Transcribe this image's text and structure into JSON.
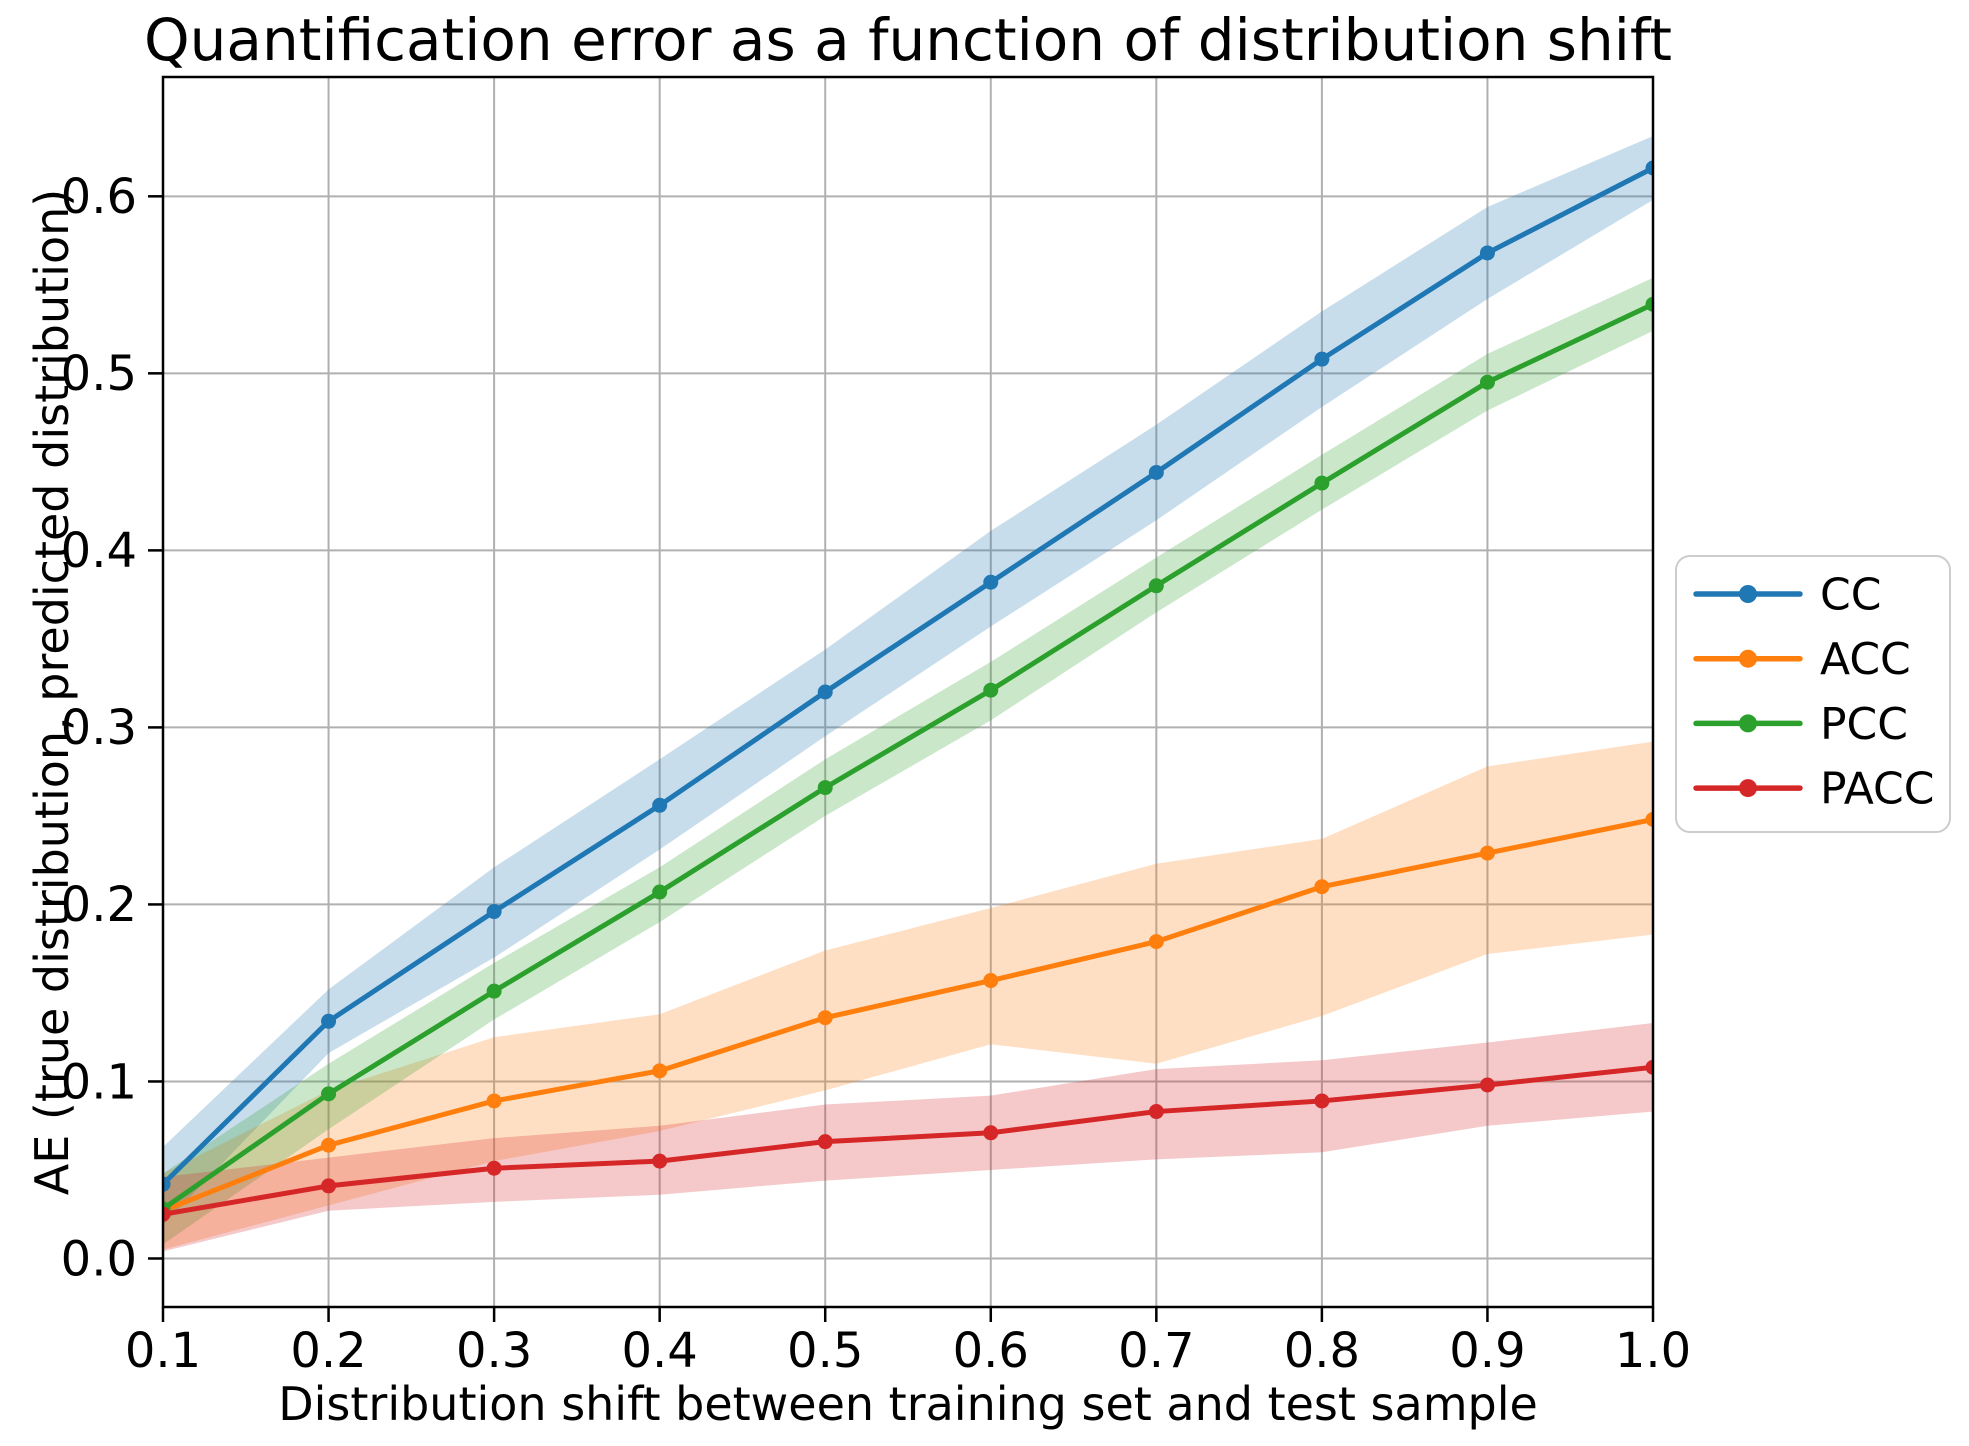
{
  "figure": {
    "background": "#ffffff"
  },
  "chart_data": {
    "type": "line",
    "title": "Quantification error as a function of distribution shift",
    "xlabel": "Distribution shift between training set and test sample",
    "ylabel": "AE (true distribution, predicted distribution)",
    "x": [
      0.1,
      0.2,
      0.3,
      0.4,
      0.5,
      0.6,
      0.7,
      0.8,
      0.9,
      1.0
    ],
    "x_tick_labels": [
      "0.1",
      "0.2",
      "0.3",
      "0.4",
      "0.5",
      "0.6",
      "0.7",
      "0.8",
      "0.9",
      "1.0"
    ],
    "y_ticks": [
      0.0,
      0.1,
      0.2,
      0.3,
      0.4,
      0.5,
      0.6
    ],
    "y_tick_labels": [
      "0.0",
      "0.1",
      "0.2",
      "0.3",
      "0.4",
      "0.5",
      "0.6"
    ],
    "xlim": [
      0.1,
      1.0
    ],
    "ylim": [
      -0.0274,
      0.6674
    ],
    "grid": true,
    "legend_position": "outside-center-right",
    "marker": "circle",
    "series": [
      {
        "name": "CC",
        "color": "#1f77b4",
        "values": [
          0.042,
          0.134,
          0.196,
          0.256,
          0.32,
          0.382,
          0.444,
          0.508,
          0.568,
          0.616
        ],
        "band_lower": [
          0.019,
          0.116,
          0.17,
          0.231,
          0.295,
          0.357,
          0.417,
          0.481,
          0.542,
          0.598
        ],
        "band_upper": [
          0.063,
          0.152,
          0.221,
          0.282,
          0.344,
          0.411,
          0.471,
          0.535,
          0.594,
          0.634
        ]
      },
      {
        "name": "ACC",
        "color": "#ff7f0e",
        "values": [
          0.027,
          0.064,
          0.089,
          0.106,
          0.136,
          0.157,
          0.179,
          0.21,
          0.229,
          0.248
        ],
        "band_lower": [
          0.005,
          0.03,
          0.055,
          0.072,
          0.095,
          0.121,
          0.11,
          0.137,
          0.172,
          0.183
        ],
        "band_upper": [
          0.048,
          0.095,
          0.125,
          0.138,
          0.174,
          0.198,
          0.223,
          0.237,
          0.278,
          0.292
        ]
      },
      {
        "name": "PCC",
        "color": "#2ca02c",
        "values": [
          0.028,
          0.093,
          0.151,
          0.207,
          0.266,
          0.321,
          0.38,
          0.438,
          0.495,
          0.539
        ],
        "band_lower": [
          0.008,
          0.073,
          0.135,
          0.19,
          0.25,
          0.304,
          0.365,
          0.423,
          0.479,
          0.524
        ],
        "band_upper": [
          0.048,
          0.11,
          0.167,
          0.221,
          0.282,
          0.337,
          0.396,
          0.454,
          0.511,
          0.554
        ]
      },
      {
        "name": "PACC",
        "color": "#d62728",
        "values": [
          0.025,
          0.041,
          0.051,
          0.055,
          0.066,
          0.071,
          0.083,
          0.089,
          0.098,
          0.108
        ],
        "band_lower": [
          0.004,
          0.027,
          0.032,
          0.036,
          0.044,
          0.05,
          0.056,
          0.06,
          0.075,
          0.083
        ],
        "band_upper": [
          0.046,
          0.057,
          0.068,
          0.075,
          0.087,
          0.092,
          0.107,
          0.112,
          0.122,
          0.133
        ]
      }
    ],
    "style": {
      "grid_color": "#b0b0b0",
      "spine_color": "#000000",
      "text_color": "#000000",
      "background": "#ffffff",
      "legend_border_color": "#cccccc",
      "legend_background": "#ffffff",
      "band_alpha": 0.25
    }
  }
}
